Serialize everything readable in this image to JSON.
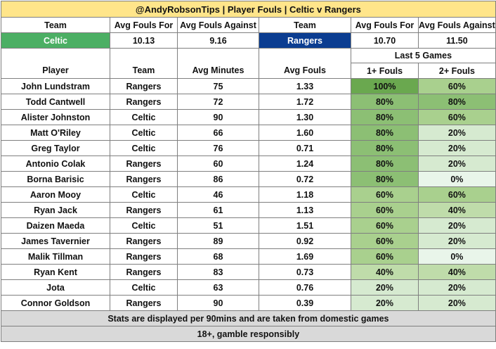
{
  "title": "@AndyRobsonTips | Player Fouls | Celtic v Rangers",
  "team_header": {
    "team_label": "Team",
    "avg_for_label": "Avg Fouls For",
    "avg_against_label": "Avg Fouls Against"
  },
  "home": {
    "name": "Celtic",
    "avg_for": "10.13",
    "avg_against": "9.16",
    "color": "#4caf64"
  },
  "away": {
    "name": "Rangers",
    "avg_for": "10.70",
    "avg_against": "11.50",
    "color": "#0b3d91"
  },
  "player_header": {
    "player": "Player",
    "team": "Team",
    "avg_minutes": "Avg Minutes",
    "avg_fouls": "Avg Fouls",
    "last5": "Last 5 Games",
    "one_plus": "1+ Fouls",
    "two_plus": "2+ Fouls"
  },
  "heat_colors": {
    "100%": "#6aa84f",
    "80%": "#8cbf74",
    "60%": "#a9d08e",
    "40%": "#bfdcaa",
    "20%": "#d6ead0",
    "0%": "#e9f5ea"
  },
  "players": [
    {
      "name": "John Lundstram",
      "team": "Rangers",
      "minutes": "75",
      "fouls": "1.33",
      "one_plus": "100%",
      "two_plus": "60%"
    },
    {
      "name": "Todd Cantwell",
      "team": "Rangers",
      "minutes": "72",
      "fouls": "1.72",
      "one_plus": "80%",
      "two_plus": "80%"
    },
    {
      "name": "Alister Johnston",
      "team": "Celtic",
      "minutes": "90",
      "fouls": "1.30",
      "one_plus": "80%",
      "two_plus": "60%"
    },
    {
      "name": "Matt O'Riley",
      "team": "Celtic",
      "minutes": "66",
      "fouls": "1.60",
      "one_plus": "80%",
      "two_plus": "20%"
    },
    {
      "name": "Greg Taylor",
      "team": "Celtic",
      "minutes": "76",
      "fouls": "0.71",
      "one_plus": "80%",
      "two_plus": "20%"
    },
    {
      "name": "Antonio Colak",
      "team": "Rangers",
      "minutes": "60",
      "fouls": "1.24",
      "one_plus": "80%",
      "two_plus": "20%"
    },
    {
      "name": "Borna Barisic",
      "team": "Rangers",
      "minutes": "86",
      "fouls": "0.72",
      "one_plus": "80%",
      "two_plus": "0%"
    },
    {
      "name": "Aaron Mooy",
      "team": "Celtic",
      "minutes": "46",
      "fouls": "1.18",
      "one_plus": "60%",
      "two_plus": "60%"
    },
    {
      "name": "Ryan Jack",
      "team": "Rangers",
      "minutes": "61",
      "fouls": "1.13",
      "one_plus": "60%",
      "two_plus": "40%"
    },
    {
      "name": "Daizen Maeda",
      "team": "Celtic",
      "minutes": "51",
      "fouls": "1.51",
      "one_plus": "60%",
      "two_plus": "20%"
    },
    {
      "name": "James Tavernier",
      "team": "Rangers",
      "minutes": "89",
      "fouls": "0.92",
      "one_plus": "60%",
      "two_plus": "20%"
    },
    {
      "name": "Malik Tillman",
      "team": "Rangers",
      "minutes": "68",
      "fouls": "1.69",
      "one_plus": "60%",
      "two_plus": "0%"
    },
    {
      "name": "Ryan Kent",
      "team": "Rangers",
      "minutes": "83",
      "fouls": "0.73",
      "one_plus": "40%",
      "two_plus": "40%"
    },
    {
      "name": "Jota",
      "team": "Celtic",
      "minutes": "63",
      "fouls": "0.76",
      "one_plus": "20%",
      "two_plus": "20%"
    },
    {
      "name": "Connor Goldson",
      "team": "Rangers",
      "minutes": "90",
      "fouls": "0.39",
      "one_plus": "20%",
      "two_plus": "20%"
    }
  ],
  "footer": {
    "note": "Stats are displayed per 90mins and are taken from domestic games",
    "disclaimer": "18+, gamble responsibly"
  }
}
